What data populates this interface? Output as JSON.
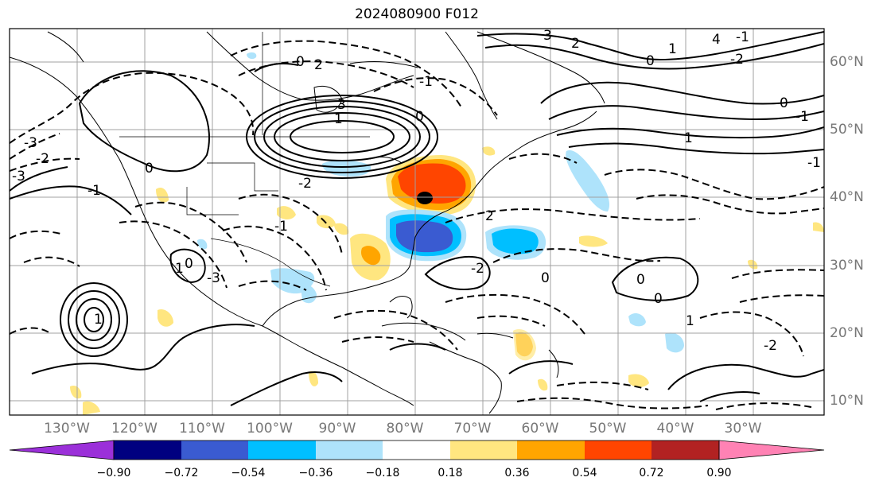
{
  "title": "2024080900 F012",
  "lon_labels": [
    "130°W",
    "120°W",
    "110°W",
    "100°W",
    "90°W",
    "80°W",
    "70°W",
    "60°W",
    "50°W",
    "40°W",
    "30°W"
  ],
  "lat_labels": [
    "60°N",
    "50°N",
    "40°N",
    "30°N",
    "20°N",
    "10°N"
  ],
  "colorbar": {
    "ticks": [
      "−0.90",
      "−0.72",
      "−0.54",
      "−0.36",
      "−0.18",
      "0.18",
      "0.36",
      "0.54",
      "0.72",
      "0.90"
    ],
    "colors": [
      "#9b30d9",
      "#000080",
      "#3a5bd1",
      "#00bfff",
      "#aee3fb",
      "#ffffff",
      "#ffe680",
      "#ffa500",
      "#ff4500",
      "#b22222",
      "#ff82b4"
    ]
  },
  "contour_labels": [
    "3",
    "2",
    "-3",
    "-2",
    "0",
    "1",
    "-1",
    "4",
    "-2",
    "0",
    "2",
    "3",
    "1",
    "-1",
    "0",
    "-2",
    "2",
    "-3",
    "0",
    "-1",
    "-3",
    "0",
    "1",
    "-1",
    "1",
    "-2",
    "0",
    "0",
    "-1",
    "1",
    "-2",
    "0",
    "-1",
    "1",
    "0"
  ],
  "colors": {
    "frame": "#000000",
    "grid": "#a0a0a0",
    "coast": "#000000",
    "contour": "#000000"
  }
}
